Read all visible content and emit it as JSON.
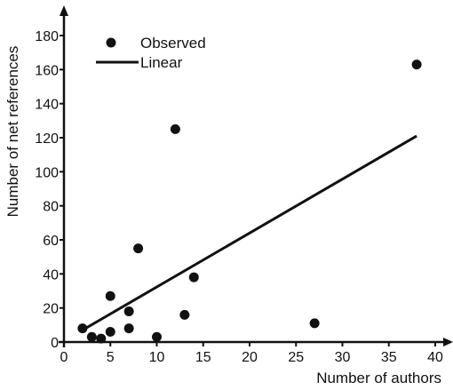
{
  "chart_data": {
    "type": "scatter",
    "title": "",
    "xlabel": "Number of authors",
    "ylabel": "Number of net references",
    "xlim": [
      0,
      40
    ],
    "ylim": [
      0,
      180
    ],
    "x_ticks": [
      "0",
      "5",
      "10",
      "15",
      "20",
      "25",
      "30",
      "35",
      "40"
    ],
    "y_ticks": [
      "0",
      "20",
      "40",
      "60",
      "80",
      "100",
      "120",
      "140",
      "160",
      "180"
    ],
    "grid": false,
    "legend": {
      "placement": "top-left",
      "entries": [
        {
          "label": "Observed",
          "symbol": "dot"
        },
        {
          "label": "Linear",
          "symbol": "line"
        }
      ]
    },
    "series": [
      {
        "name": "Observed",
        "kind": "points",
        "points": [
          [
            2,
            8
          ],
          [
            3,
            3
          ],
          [
            4,
            2
          ],
          [
            5,
            6
          ],
          [
            5,
            27
          ],
          [
            7,
            8
          ],
          [
            7,
            18
          ],
          [
            8,
            55
          ],
          [
            10,
            3
          ],
          [
            12,
            125
          ],
          [
            13,
            16
          ],
          [
            14,
            38
          ],
          [
            27,
            11
          ],
          [
            38,
            163
          ]
        ]
      },
      {
        "name": "Linear",
        "kind": "line",
        "points": [
          [
            2,
            7
          ],
          [
            38,
            121
          ]
        ]
      }
    ],
    "color": "#111111"
  }
}
